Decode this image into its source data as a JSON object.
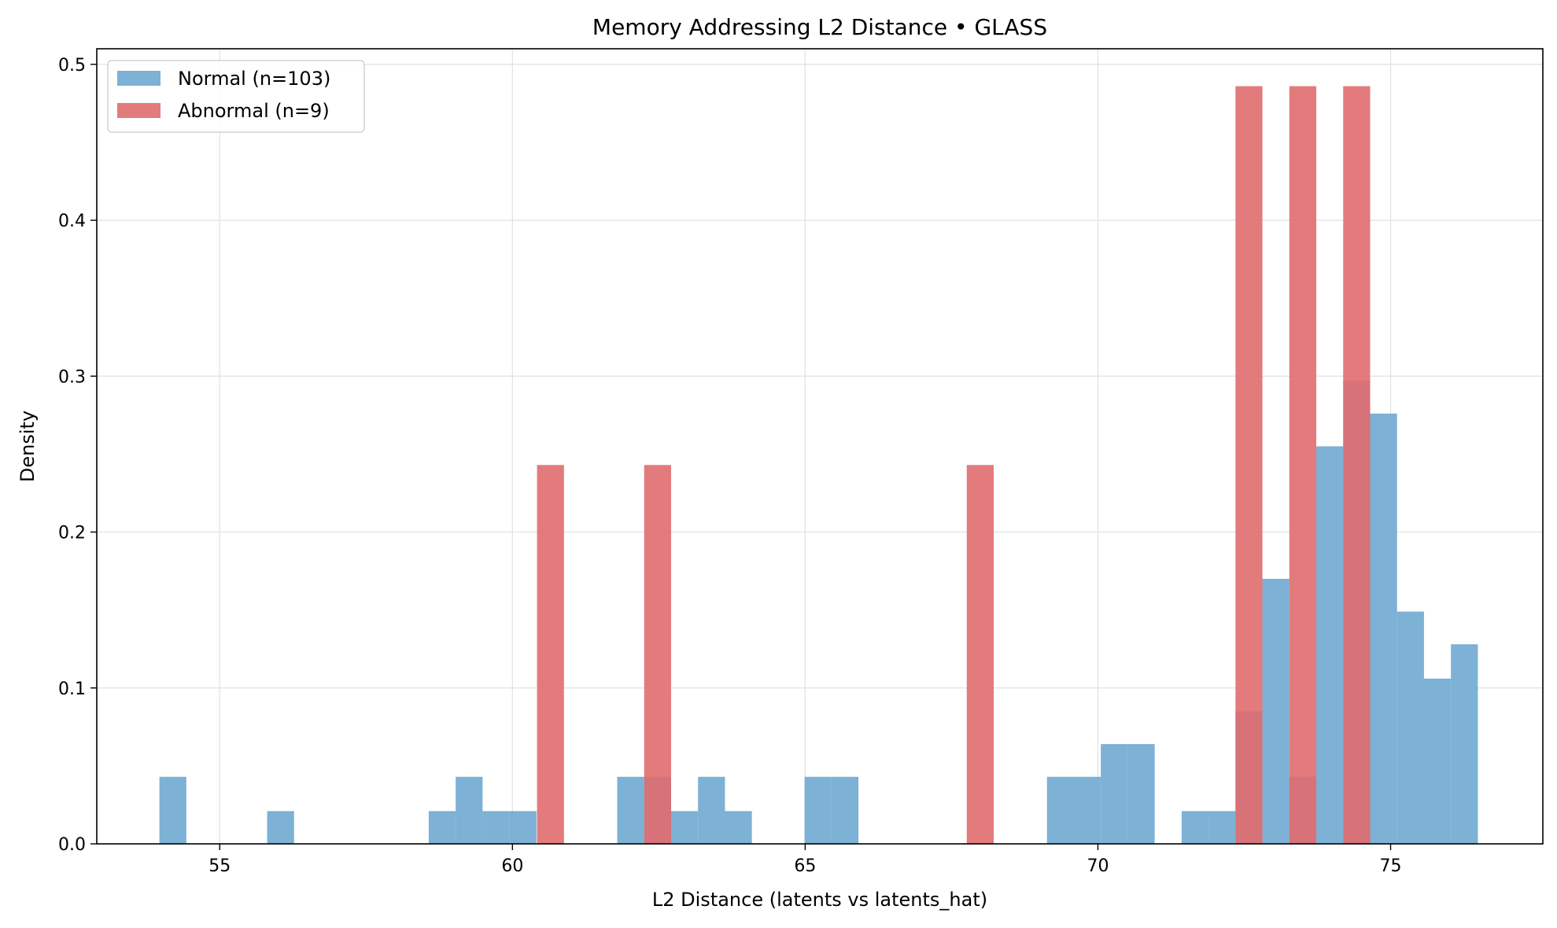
{
  "chart_data": {
    "type": "bar",
    "subtype": "overlapping-histogram",
    "title": "Memory Addressing L2 Distance • GLASS",
    "xlabel": "L2 Distance (latents vs latents_hat)",
    "ylabel": "Density",
    "xlim": [
      52.9,
      77.6
    ],
    "ylim": [
      0,
      0.51
    ],
    "xticks": [
      55,
      60,
      65,
      70,
      75
    ],
    "yticks": [
      0.0,
      0.1,
      0.2,
      0.3,
      0.4,
      0.5
    ],
    "xtick_labels": [
      "55",
      "60",
      "65",
      "70",
      "75"
    ],
    "ytick_labels": [
      "0.0",
      "0.1",
      "0.2",
      "0.3",
      "0.4",
      "0.5"
    ],
    "grid": true,
    "legend_position": "top-left",
    "series": [
      {
        "name": "Normal (n=103)",
        "color": "#6fa8d0",
        "bin_width": 0.46,
        "bins": [
          {
            "x0": 53.97,
            "value": 0.043
          },
          {
            "x0": 55.81,
            "value": 0.021
          },
          {
            "x0": 58.57,
            "value": 0.021
          },
          {
            "x0": 59.03,
            "value": 0.043
          },
          {
            "x0": 59.49,
            "value": 0.021
          },
          {
            "x0": 59.95,
            "value": 0.021
          },
          {
            "x0": 61.79,
            "value": 0.043
          },
          {
            "x0": 62.25,
            "value": 0.043
          },
          {
            "x0": 62.71,
            "value": 0.021
          },
          {
            "x0": 63.17,
            "value": 0.043
          },
          {
            "x0": 63.63,
            "value": 0.021
          },
          {
            "x0": 64.99,
            "value": 0.043
          },
          {
            "x0": 65.45,
            "value": 0.043
          },
          {
            "x0": 69.13,
            "value": 0.043
          },
          {
            "x0": 69.59,
            "value": 0.043
          },
          {
            "x0": 70.05,
            "value": 0.064
          },
          {
            "x0": 70.51,
            "value": 0.064
          },
          {
            "x0": 71.43,
            "value": 0.021
          },
          {
            "x0": 71.89,
            "value": 0.021
          },
          {
            "x0": 72.35,
            "value": 0.085
          },
          {
            "x0": 72.81,
            "value": 0.17
          },
          {
            "x0": 73.27,
            "value": 0.043
          },
          {
            "x0": 73.73,
            "value": 0.255
          },
          {
            "x0": 74.19,
            "value": 0.297
          },
          {
            "x0": 74.65,
            "value": 0.276
          },
          {
            "x0": 75.11,
            "value": 0.149
          },
          {
            "x0": 75.57,
            "value": 0.106
          },
          {
            "x0": 76.03,
            "value": 0.128
          }
        ]
      },
      {
        "name": "Abnormal (n=9)",
        "color": "#e06c6e",
        "bin_width": 0.46,
        "bins": [
          {
            "x0": 60.42,
            "value": 0.243
          },
          {
            "x0": 62.25,
            "value": 0.243
          },
          {
            "x0": 67.76,
            "value": 0.243
          },
          {
            "x0": 72.35,
            "value": 0.486
          },
          {
            "x0": 73.27,
            "value": 0.486
          },
          {
            "x0": 74.19,
            "value": 0.486
          }
        ]
      }
    ]
  }
}
